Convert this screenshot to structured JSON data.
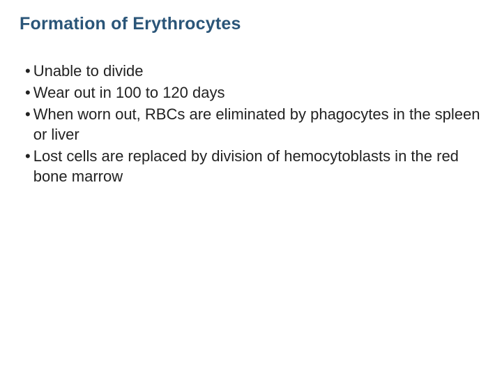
{
  "slide": {
    "title": "Formation of Erythrocytes",
    "title_color": "#2a5578",
    "bullet_color": "#222222",
    "text_color": "#222222",
    "background_color": "#ffffff",
    "title_fontsize": 25,
    "body_fontsize": 22,
    "bullets": [
      {
        "text": "Unable to divide"
      },
      {
        "text": "Wear out in 100 to 120 days"
      },
      {
        "text": "When worn out, RBCs are eliminated by phagocytes in the spleen or liver"
      },
      {
        "text": "Lost cells are replaced by division of hemocytoblasts in the red bone marrow"
      }
    ]
  }
}
